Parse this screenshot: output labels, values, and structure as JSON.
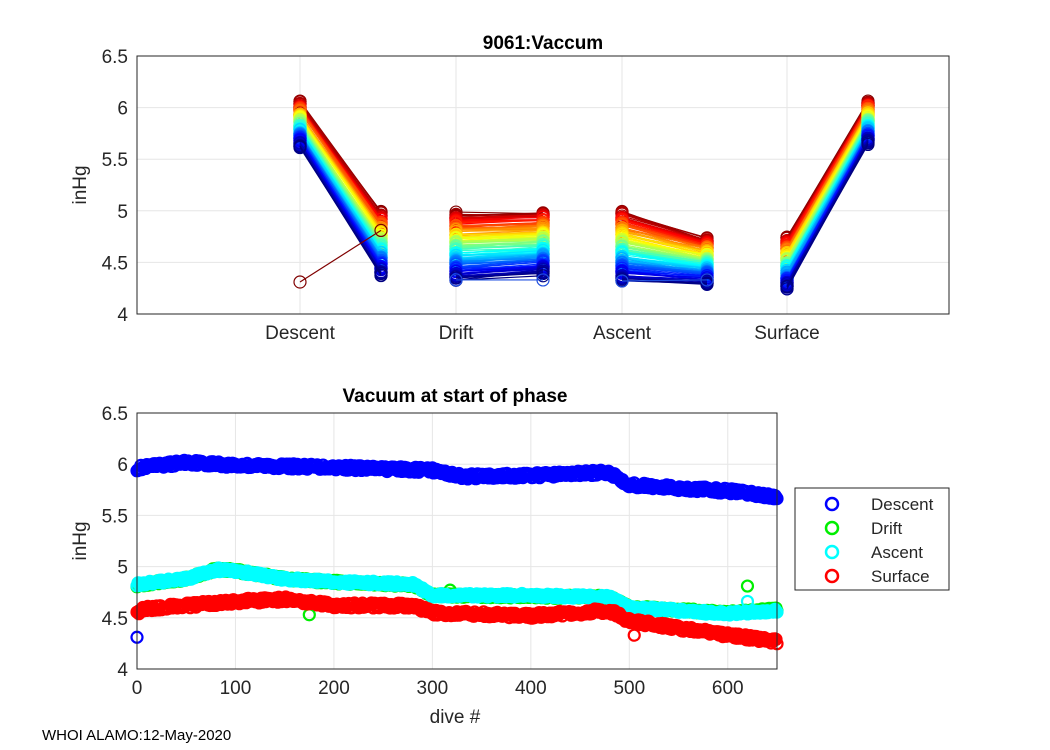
{
  "footer": "WHOI ALAMO:12-May-2020",
  "chart_data": [
    {
      "type": "line",
      "title": "9061:Vaccum",
      "xlabel": "",
      "ylabel": "inHg",
      "ylim": [
        4,
        6.5
      ],
      "yticks": [
        "4",
        "4.5",
        "5",
        "5.5",
        "6",
        "6.5"
      ],
      "categories": [
        "Descent",
        "Drift",
        "Ascent",
        "Surface"
      ],
      "grid": true,
      "colormap": "jet (dive index)",
      "phase_ranges": [
        {
          "phase": "Descent",
          "start": [
            5.62,
            6.05
          ],
          "end": [
            4.33,
            4.98
          ]
        },
        {
          "phase": "Drift",
          "start": [
            4.33,
            4.97
          ],
          "end": [
            4.33,
            4.99
          ]
        },
        {
          "phase": "Ascent",
          "start": [
            4.32,
            4.99
          ],
          "end": [
            4.25,
            4.73
          ]
        },
        {
          "phase": "Surface",
          "start": [
            4.25,
            4.73
          ],
          "end": [
            5.62,
            6.06
          ]
        }
      ],
      "outliers": [
        {
          "phase": "Descent",
          "start": 4.31,
          "end": 4.81,
          "color": "#800000"
        },
        {
          "phase": "Drift",
          "start": 4.33,
          "end": 4.33,
          "color": "#1f4fe0"
        },
        {
          "phase": "Ascent",
          "start": 4.32,
          "end": 4.33,
          "color": "#1f4fe0"
        }
      ]
    },
    {
      "type": "scatter",
      "title": "Vacuum at start of phase",
      "xlabel": "dive #",
      "ylabel": "inHg",
      "xlim": [
        0,
        650
      ],
      "ylim": [
        4,
        6.5
      ],
      "xticks": [
        "0",
        "100",
        "200",
        "300",
        "400",
        "500",
        "600"
      ],
      "yticks": [
        "4",
        "4.5",
        "5",
        "5.5",
        "6",
        "6.5"
      ],
      "grid": true,
      "legend_position": "outside-right",
      "series": [
        {
          "name": "Descent",
          "color": "#0000ff",
          "trend": [
            [
              0,
              5.96
            ],
            [
              50,
              6.02
            ],
            [
              100,
              5.99
            ],
            [
              200,
              5.97
            ],
            [
              300,
              5.94
            ],
            [
              330,
              5.88
            ],
            [
              400,
              5.89
            ],
            [
              480,
              5.92
            ],
            [
              500,
              5.8
            ],
            [
              560,
              5.76
            ],
            [
              600,
              5.74
            ],
            [
              650,
              5.68
            ]
          ],
          "outliers": [
            [
              0,
              4.31
            ]
          ]
        },
        {
          "name": "Drift",
          "color": "#00ee00",
          "trend": [
            [
              0,
              4.82
            ],
            [
              50,
              4.88
            ],
            [
              80,
              4.97
            ],
            [
              100,
              4.96
            ],
            [
              150,
              4.88
            ],
            [
              200,
              4.85
            ],
            [
              280,
              4.82
            ],
            [
              300,
              4.72
            ],
            [
              400,
              4.71
            ],
            [
              480,
              4.7
            ],
            [
              500,
              4.6
            ],
            [
              600,
              4.55
            ],
            [
              650,
              4.58
            ]
          ],
          "outliers": [
            [
              175,
              4.53
            ],
            [
              318,
              4.77
            ],
            [
              620,
              4.81
            ]
          ]
        },
        {
          "name": "Ascent",
          "color": "#00ffff",
          "trend": [
            [
              0,
              4.83
            ],
            [
              50,
              4.88
            ],
            [
              80,
              4.97
            ],
            [
              100,
              4.96
            ],
            [
              150,
              4.88
            ],
            [
              200,
              4.85
            ],
            [
              280,
              4.83
            ],
            [
              300,
              4.72
            ],
            [
              400,
              4.72
            ],
            [
              480,
              4.7
            ],
            [
              500,
              4.6
            ],
            [
              600,
              4.54
            ],
            [
              650,
              4.57
            ]
          ],
          "outliers": [
            [
              620,
              4.66
            ]
          ]
        },
        {
          "name": "Surface",
          "color": "#ff0000",
          "trend": [
            [
              0,
              4.58
            ],
            [
              50,
              4.62
            ],
            [
              100,
              4.66
            ],
            [
              150,
              4.68
            ],
            [
              200,
              4.62
            ],
            [
              280,
              4.62
            ],
            [
              300,
              4.55
            ],
            [
              400,
              4.52
            ],
            [
              480,
              4.57
            ],
            [
              500,
              4.47
            ],
            [
              600,
              4.33
            ],
            [
              650,
              4.27
            ]
          ],
          "outliers": [
            [
              2,
              4.54
            ],
            [
              505,
              4.33
            ]
          ]
        }
      ]
    }
  ]
}
